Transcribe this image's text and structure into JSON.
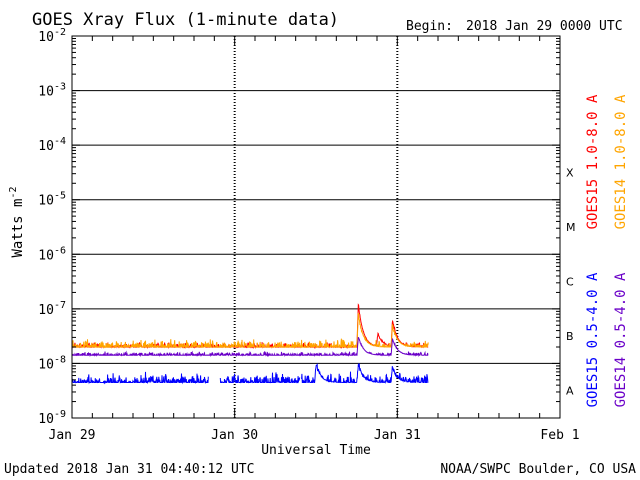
{
  "chart_data": {
    "type": "line",
    "title": "GOES Xray Flux (1-minute data)",
    "begin_label": "Begin:",
    "begin_value": "2018 Jan 29 0000 UTC",
    "xlabel": "Universal Time",
    "ylabel": "Watts m",
    "ylabel_exp": "-2",
    "x_ticks": [
      "Jan 29",
      "Jan 30",
      "Jan 31",
      "Feb 1"
    ],
    "x_range_days": [
      0,
      3
    ],
    "y_scale": "log",
    "ylim": [
      1e-09,
      0.01
    ],
    "y_ticks": [
      {
        "base": "10",
        "exp": "-2"
      },
      {
        "base": "10",
        "exp": "-3"
      },
      {
        "base": "10",
        "exp": "-4"
      },
      {
        "base": "10",
        "exp": "-5"
      },
      {
        "base": "10",
        "exp": "-6"
      },
      {
        "base": "10",
        "exp": "-7"
      },
      {
        "base": "10",
        "exp": "-8"
      },
      {
        "base": "10",
        "exp": "-9"
      }
    ],
    "flare_classes": [
      "X",
      "M",
      "C",
      "B",
      "A"
    ],
    "data_end_day": 2.19,
    "series": [
      {
        "name": "GOES15 1.0-8.0 A",
        "color": "#ff0000",
        "base_log": -7.7,
        "noise": 0.06,
        "events": [
          {
            "day": 1.76,
            "peak": -6.9
          },
          {
            "day": 1.88,
            "peak": -7.45
          },
          {
            "day": 1.97,
            "peak": -7.2
          }
        ]
      },
      {
        "name": "GOES14 1.0-8.0 A",
        "color": "#ffa500",
        "base_log": -7.7,
        "noise": 0.1,
        "events": [
          {
            "day": 1.76,
            "peak": -7.1
          },
          {
            "day": 1.97,
            "peak": -7.3
          }
        ]
      },
      {
        "name": "GOES15 0.5-4.0 A",
        "color": "#0000ff",
        "base_log": -8.35,
        "noise": 0.12,
        "gaps": [
          [
            0.84,
            0.91
          ],
          [
            1.4,
            1.41
          ]
        ],
        "events": [
          {
            "day": 1.5,
            "peak": -8.0
          },
          {
            "day": 1.76,
            "peak": -8.0
          },
          {
            "day": 1.97,
            "peak": -8.05
          }
        ]
      },
      {
        "name": "GOES14 0.5-4.0 A",
        "color": "#6a00c8",
        "base_log": -7.85,
        "noise": 0.05,
        "events": [
          {
            "day": 1.76,
            "peak": -7.5
          },
          {
            "day": 1.97,
            "peak": -7.55
          }
        ]
      }
    ],
    "legend_right": {
      "outer": [
        {
          "text": "GOES15 1.0-8.0 A",
          "color": "#ff0000"
        },
        {
          "text": "GOES15 0.5-4.0 A",
          "color": "#0000ff"
        }
      ],
      "inner": [
        {
          "text": "GOES14 1.0-8.0 A",
          "color": "#ffa500"
        },
        {
          "text": "GOES14 0.5-4.0 A",
          "color": "#6a00c8"
        }
      ]
    }
  },
  "footer": {
    "updated": "Updated 2018 Jan 31 04:40:12 UTC",
    "credit": "NOAA/SWPC Boulder, CO USA"
  }
}
